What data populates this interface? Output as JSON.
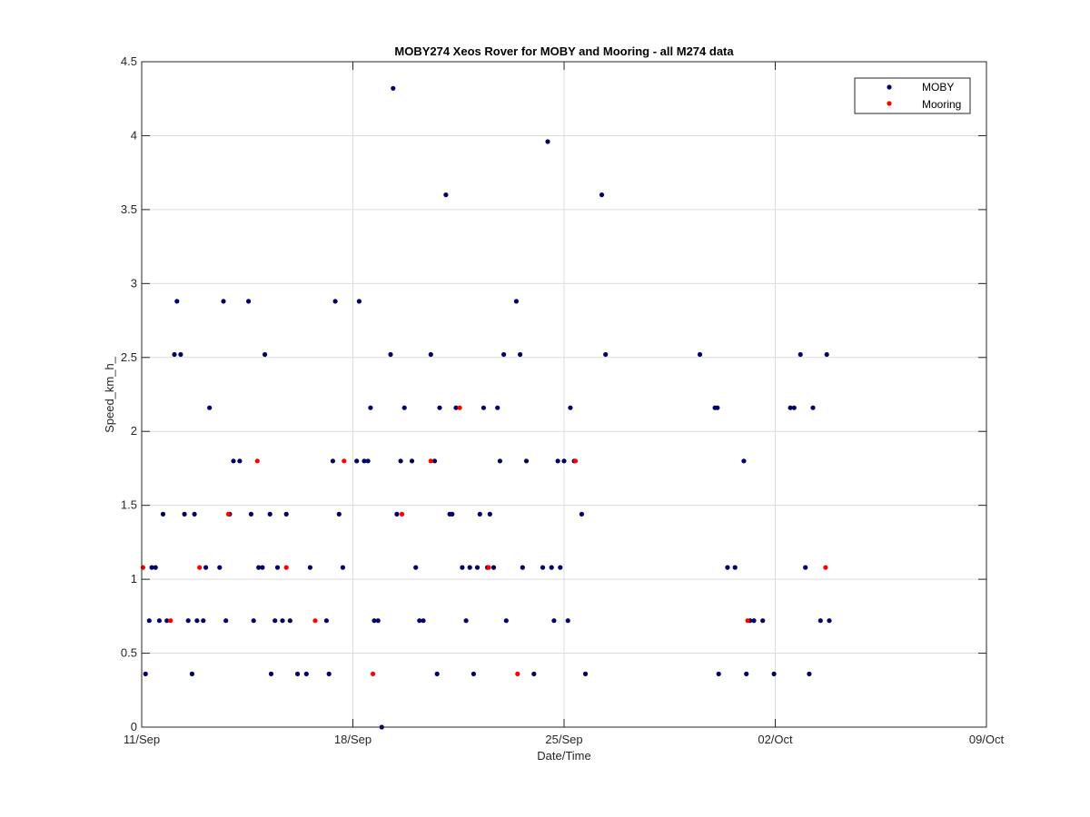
{
  "chart_data": {
    "type": "scatter",
    "title": "MOBY274 Xeos Rover for MOBY and Mooring - all M274 data",
    "xlabel": "Date/Time",
    "ylabel": "Speed_km_h_",
    "xlim": [
      "2023-09-11",
      "2023-10-09"
    ],
    "x_ticks": [
      "11/Sep",
      "18/Sep",
      "25/Sep",
      "02/Oct",
      "09/Oct"
    ],
    "ylim": [
      0,
      4.5
    ],
    "y_ticks": [
      "0",
      "0.5",
      "1",
      "1.5",
      "2",
      "2.5",
      "3",
      "3.5",
      "4",
      "4.5"
    ],
    "grid": true,
    "legend": "top-right",
    "series": [
      {
        "name": "MOBY",
        "color": "#000066",
        "points": [
          [
            "2023-09-11 03:00",
            0.36
          ],
          [
            "2023-09-11 06:00",
            0.72
          ],
          [
            "2023-09-11 08:00",
            1.08
          ],
          [
            "2023-09-11 11:00",
            1.08
          ],
          [
            "2023-09-11 14:00",
            0.72
          ],
          [
            "2023-09-11 17:00",
            1.44
          ],
          [
            "2023-09-11 20:00",
            0.72
          ],
          [
            "2023-09-12 02:00",
            2.52
          ],
          [
            "2023-09-12 04:00",
            2.88
          ],
          [
            "2023-09-12 07:00",
            2.52
          ],
          [
            "2023-09-12 10:00",
            1.44
          ],
          [
            "2023-09-12 13:00",
            0.72
          ],
          [
            "2023-09-12 16:00",
            0.36
          ],
          [
            "2023-09-12 18:00",
            1.44
          ],
          [
            "2023-09-12 20:00",
            0.72
          ],
          [
            "2023-09-13 01:00",
            0.72
          ],
          [
            "2023-09-13 03:00",
            1.08
          ],
          [
            "2023-09-13 06:00",
            2.16
          ],
          [
            "2023-09-13 14:00",
            1.08
          ],
          [
            "2023-09-13 17:00",
            2.88
          ],
          [
            "2023-09-13 19:00",
            0.72
          ],
          [
            "2023-09-13 22:00",
            1.44
          ],
          [
            "2023-09-14 01:00",
            1.8
          ],
          [
            "2023-09-14 06:00",
            1.8
          ],
          [
            "2023-09-14 13:00",
            2.88
          ],
          [
            "2023-09-14 15:00",
            1.44
          ],
          [
            "2023-09-14 17:00",
            0.72
          ],
          [
            "2023-09-14 21:00",
            1.08
          ],
          [
            "2023-09-15 00:00",
            1.08
          ],
          [
            "2023-09-15 02:00",
            2.52
          ],
          [
            "2023-09-15 06:00",
            1.44
          ],
          [
            "2023-09-15 07:00",
            0.36
          ],
          [
            "2023-09-15 10:00",
            0.72
          ],
          [
            "2023-09-15 12:00",
            1.08
          ],
          [
            "2023-09-15 16:00",
            0.72
          ],
          [
            "2023-09-15 19:00",
            1.44
          ],
          [
            "2023-09-15 22:00",
            0.72
          ],
          [
            "2023-09-16 04:00",
            0.36
          ],
          [
            "2023-09-16 11:00",
            0.36
          ],
          [
            "2023-09-16 14:00",
            1.08
          ],
          [
            "2023-09-17 03:00",
            0.72
          ],
          [
            "2023-09-17 05:00",
            0.36
          ],
          [
            "2023-09-17 08:00",
            1.8
          ],
          [
            "2023-09-17 10:00",
            2.88
          ],
          [
            "2023-09-17 13:00",
            1.44
          ],
          [
            "2023-09-17 16:00",
            1.08
          ],
          [
            "2023-09-18 03:00",
            1.8
          ],
          [
            "2023-09-18 05:00",
            2.88
          ],
          [
            "2023-09-18 09:00",
            1.8
          ],
          [
            "2023-09-18 12:00",
            1.8
          ],
          [
            "2023-09-18 14:00",
            2.16
          ],
          [
            "2023-09-18 17:00",
            0.72
          ],
          [
            "2023-09-18 20:00",
            0.72
          ],
          [
            "2023-09-18 23:00",
            0.0
          ],
          [
            "2023-09-19 06:00",
            2.52
          ],
          [
            "2023-09-19 08:00",
            4.32
          ],
          [
            "2023-09-19 11:00",
            1.44
          ],
          [
            "2023-09-19 14:00",
            1.8
          ],
          [
            "2023-09-19 17:00",
            2.16
          ],
          [
            "2023-09-19 23:00",
            1.8
          ],
          [
            "2023-09-20 02:00",
            1.08
          ],
          [
            "2023-09-20 05:00",
            0.72
          ],
          [
            "2023-09-20 08:00",
            0.72
          ],
          [
            "2023-09-20 14:00",
            2.52
          ],
          [
            "2023-09-20 17:00",
            1.8
          ],
          [
            "2023-09-20 19:00",
            0.36
          ],
          [
            "2023-09-20 21:00",
            2.16
          ],
          [
            "2023-09-21 02:00",
            3.6
          ],
          [
            "2023-09-21 05:00",
            1.44
          ],
          [
            "2023-09-21 07:00",
            1.44
          ],
          [
            "2023-09-21 10:00",
            2.16
          ],
          [
            "2023-09-21 15:00",
            1.08
          ],
          [
            "2023-09-21 18:00",
            0.72
          ],
          [
            "2023-09-21 21:00",
            1.08
          ],
          [
            "2023-09-22 00:00",
            0.36
          ],
          [
            "2023-09-22 03:00",
            1.08
          ],
          [
            "2023-09-22 05:00",
            1.44
          ],
          [
            "2023-09-22 08:00",
            2.16
          ],
          [
            "2023-09-22 11:00",
            1.08
          ],
          [
            "2023-09-22 13:00",
            1.44
          ],
          [
            "2023-09-22 16:00",
            1.08
          ],
          [
            "2023-09-22 19:00",
            2.16
          ],
          [
            "2023-09-22 21:00",
            1.8
          ],
          [
            "2023-09-23 00:00",
            2.52
          ],
          [
            "2023-09-23 02:00",
            0.72
          ],
          [
            "2023-09-23 10:00",
            2.88
          ],
          [
            "2023-09-23 13:00",
            2.52
          ],
          [
            "2023-09-23 15:00",
            1.08
          ],
          [
            "2023-09-23 18:00",
            1.8
          ],
          [
            "2023-09-24 00:00",
            0.36
          ],
          [
            "2023-09-24 07:00",
            1.08
          ],
          [
            "2023-09-24 11:00",
            3.96
          ],
          [
            "2023-09-24 14:00",
            1.08
          ],
          [
            "2023-09-24 16:00",
            0.72
          ],
          [
            "2023-09-24 19:00",
            1.8
          ],
          [
            "2023-09-24 21:00",
            1.08
          ],
          [
            "2023-09-25 00:00",
            1.8
          ],
          [
            "2023-09-25 03:00",
            0.72
          ],
          [
            "2023-09-25 05:00",
            2.16
          ],
          [
            "2023-09-25 08:00",
            1.8
          ],
          [
            "2023-09-25 14:00",
            1.44
          ],
          [
            "2023-09-25 17:00",
            0.36
          ],
          [
            "2023-09-26 06:00",
            3.6
          ],
          [
            "2023-09-26 09:00",
            2.52
          ],
          [
            "2023-09-29 12:00",
            2.52
          ],
          [
            "2023-09-30 00:00",
            2.16
          ],
          [
            "2023-09-30 02:00",
            2.16
          ],
          [
            "2023-09-30 03:00",
            0.36
          ],
          [
            "2023-09-30 10:00",
            1.08
          ],
          [
            "2023-09-30 16:00",
            1.08
          ],
          [
            "2023-09-30 23:00",
            1.8
          ],
          [
            "2023-10-01 01:00",
            0.36
          ],
          [
            "2023-10-01 04:00",
            0.72
          ],
          [
            "2023-10-01 07:00",
            0.72
          ],
          [
            "2023-10-01 14:00",
            0.72
          ],
          [
            "2023-10-01 23:00",
            0.36
          ],
          [
            "2023-10-02 12:00",
            2.16
          ],
          [
            "2023-10-02 15:00",
            2.16
          ],
          [
            "2023-10-02 20:00",
            2.52
          ],
          [
            "2023-10-03 00:00",
            1.08
          ],
          [
            "2023-10-03 03:00",
            0.36
          ],
          [
            "2023-10-03 06:00",
            2.16
          ],
          [
            "2023-10-03 12:00",
            0.72
          ],
          [
            "2023-10-03 17:00",
            2.52
          ],
          [
            "2023-10-03 19:00",
            0.72
          ]
        ]
      },
      {
        "name": "Mooring",
        "color": "#ff0000",
        "points": [
          [
            "2023-09-11 01:00",
            1.08
          ],
          [
            "2023-09-11 23:00",
            0.72
          ],
          [
            "2023-09-12 22:00",
            1.08
          ],
          [
            "2023-09-13 21:00",
            1.44
          ],
          [
            "2023-09-14 20:00",
            1.8
          ],
          [
            "2023-09-15 19:00",
            1.08
          ],
          [
            "2023-09-16 18:00",
            0.72
          ],
          [
            "2023-09-17 17:00",
            1.8
          ],
          [
            "2023-09-18 16:00",
            0.36
          ],
          [
            "2023-09-19 15:00",
            1.44
          ],
          [
            "2023-09-20 14:00",
            1.8
          ],
          [
            "2023-09-21 13:00",
            2.16
          ],
          [
            "2023-09-22 12:00",
            1.08
          ],
          [
            "2023-09-23 11:00",
            0.36
          ],
          [
            "2023-09-25 09:00",
            1.8
          ],
          [
            "2023-10-01 02:00",
            0.72
          ],
          [
            "2023-10-03 16:00",
            1.08
          ]
        ]
      }
    ]
  }
}
